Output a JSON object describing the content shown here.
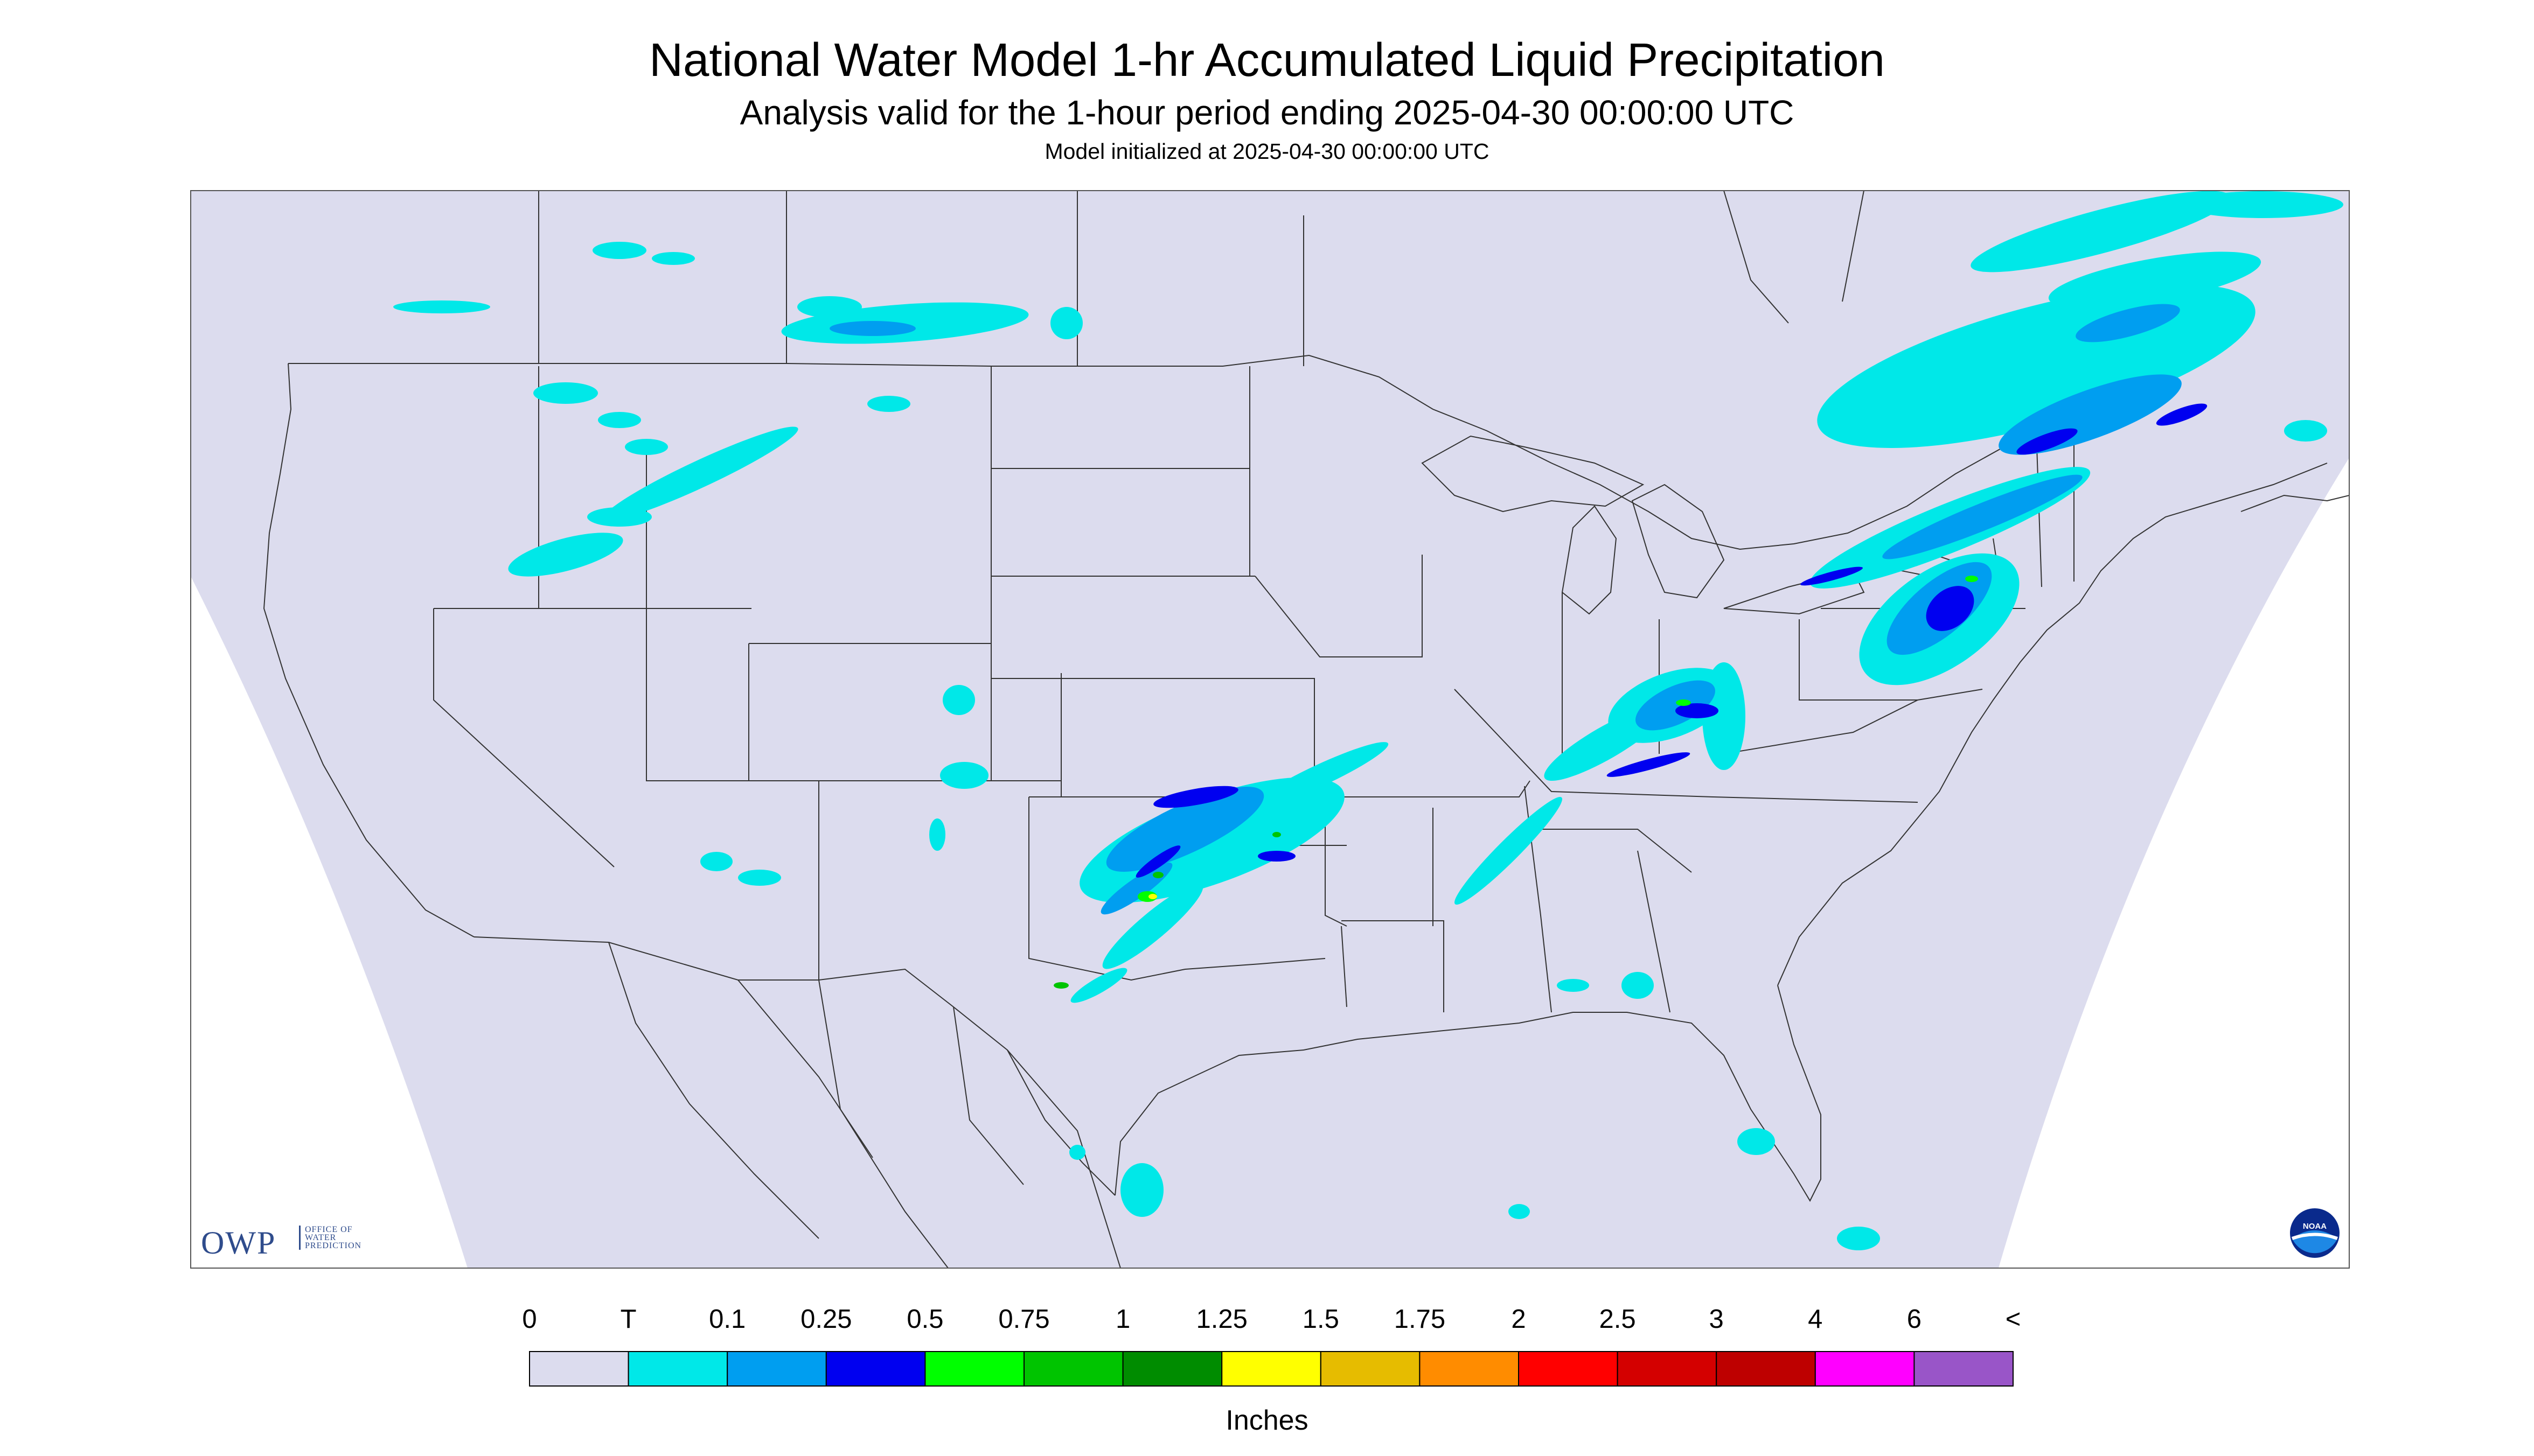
{
  "title": "National Water Model 1-hr Accumulated Liquid Precipitation",
  "subtitle": "Analysis valid for the 1-hour period ending 2025-04-30 00:00:00 UTC",
  "init_line": "Model initialized at 2025-04-30 00:00:00 UTC",
  "branding": {
    "owp_letters": "OWP",
    "owp_text": "OFFICE OF WATER PREDICTION",
    "noaa_logo": "NOAA"
  },
  "legend": {
    "unit": "Inches",
    "ticks": [
      "0",
      "T",
      "0.1",
      "0.25",
      "0.5",
      "0.75",
      "1",
      "1.25",
      "1.5",
      "1.75",
      "2",
      "2.5",
      "3",
      "4",
      "6",
      "<"
    ],
    "colors": [
      "#dcdcee",
      "#00e8e8",
      "#009ef0",
      "#0000f0",
      "#00ff00",
      "#00c400",
      "#008c00",
      "#ffff00",
      "#e6bc00",
      "#ff8c00",
      "#ff0000",
      "#d40000",
      "#be0000",
      "#ff00ff",
      "#9955c8"
    ]
  },
  "map": {
    "projection_fill": "#dcdcee",
    "outside_fill": "#ffffff"
  }
}
